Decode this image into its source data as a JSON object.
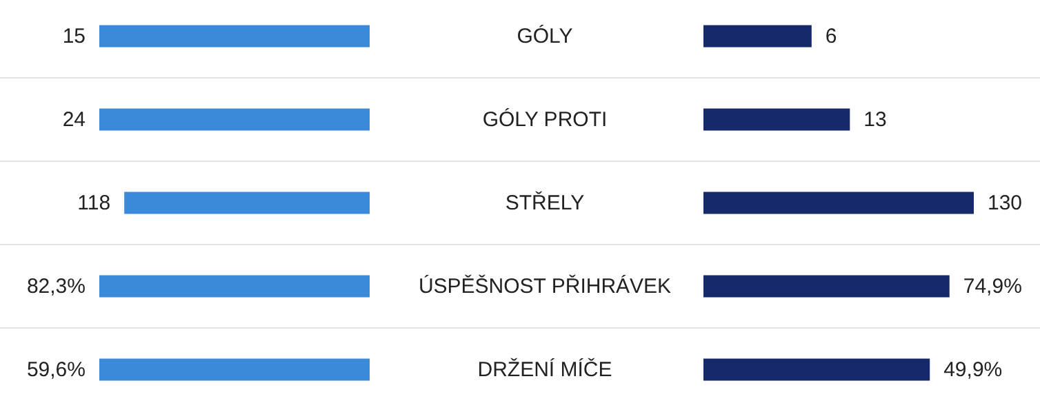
{
  "chart_data": {
    "type": "other",
    "categories": [
      "GÓLY",
      "GÓLY PROTI",
      "STŘELY",
      "ÚSPĚŠNOST PŘIHRÁVEK",
      "DRŽENÍ MÍČE"
    ],
    "series": [
      {
        "color": "#3a8ad9",
        "values": [
          15,
          24,
          118,
          82.3,
          59.6
        ],
        "value_labels": [
          "15",
          "24",
          "118",
          "82,3%",
          "59,6%"
        ]
      },
      {
        "color": "#15296b",
        "values": [
          6,
          13,
          130,
          74.9,
          49.9
        ],
        "value_labels": [
          "6",
          "13",
          "130",
          "74,9%",
          "49,9%"
        ]
      }
    ]
  }
}
